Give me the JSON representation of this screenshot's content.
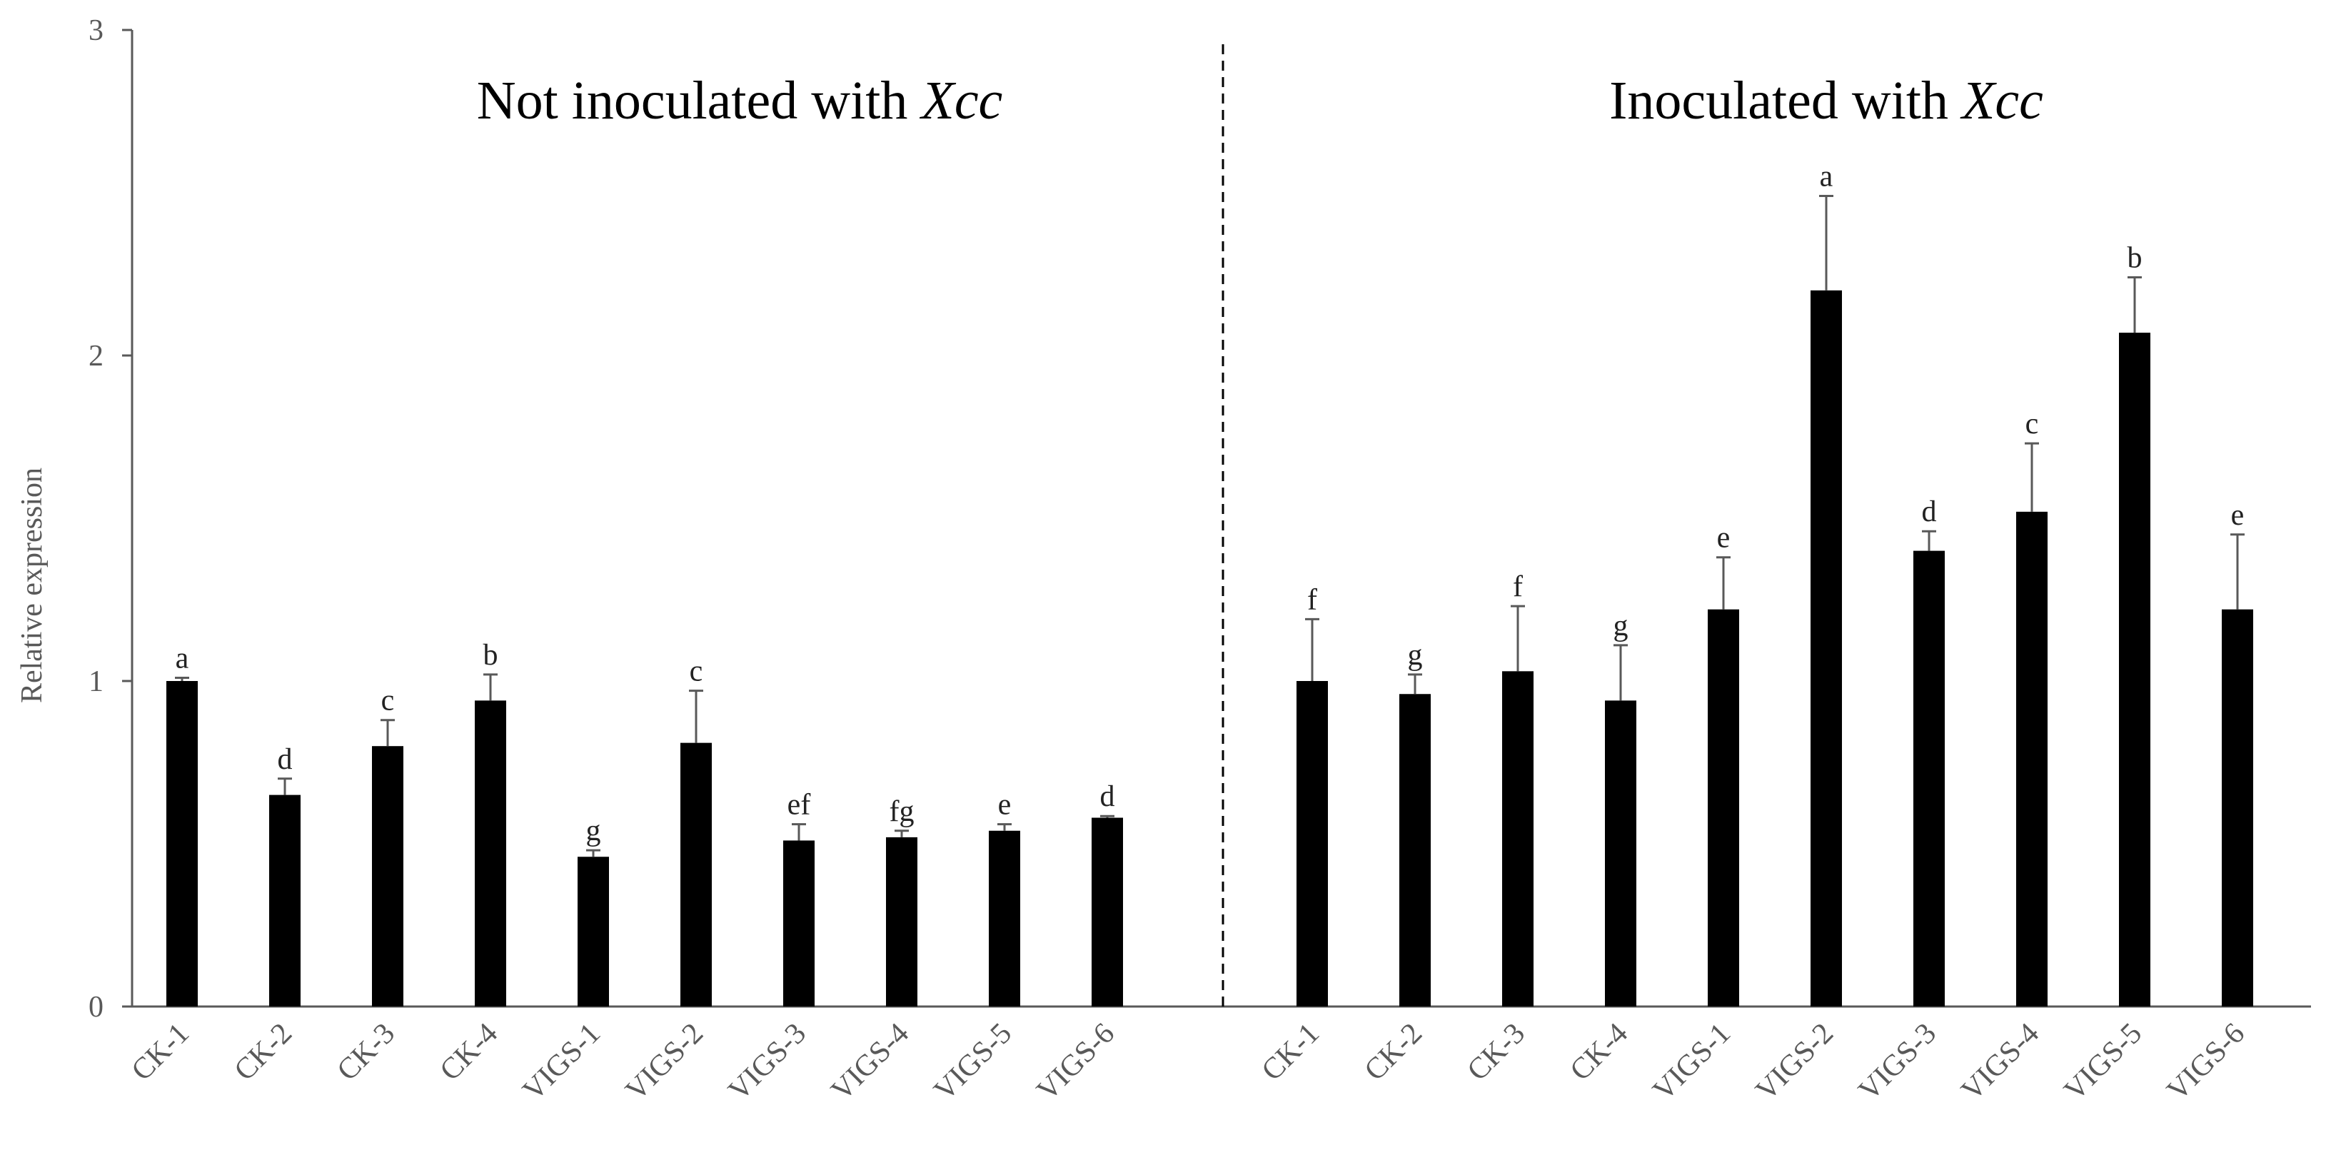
{
  "chart_data": {
    "type": "bar",
    "ylabel": "Relative expression",
    "xlabel": "",
    "ylim": [
      0,
      3
    ],
    "yticks": [
      "0",
      "1",
      "2",
      "3"
    ],
    "groups": [
      {
        "title_plain": "Not inoculated with ",
        "title_italic": "Xcc",
        "categories": [
          "CK-1",
          "CK-2",
          "CK-3",
          "CK-4",
          "VIGS-1",
          "VIGS-2",
          "VIGS-3",
          "VIGS-4",
          "VIGS-5",
          "VIGS-6"
        ],
        "values": [
          1.0,
          0.65,
          0.8,
          0.94,
          0.46,
          0.81,
          0.51,
          0.52,
          0.54,
          0.58
        ],
        "errors": [
          0.01,
          0.05,
          0.08,
          0.08,
          0.02,
          0.16,
          0.05,
          0.02,
          0.02,
          0.005
        ],
        "letters": [
          "a",
          "d",
          "c",
          "b",
          "g",
          "c",
          "ef",
          "fg",
          "e",
          "d"
        ]
      },
      {
        "title_plain": "Inoculated with ",
        "title_italic": "Xcc",
        "categories": [
          "CK-1",
          "CK-2",
          "CK-3",
          "CK-4",
          "VIGS-1",
          "VIGS-2",
          "VIGS-3",
          "VIGS-4",
          "VIGS-5",
          "VIGS-6"
        ],
        "values": [
          1.0,
          0.96,
          1.03,
          0.94,
          1.22,
          2.2,
          1.4,
          1.52,
          2.07,
          1.22
        ],
        "errors": [
          0.19,
          0.06,
          0.2,
          0.17,
          0.16,
          0.29,
          0.06,
          0.21,
          0.17,
          0.23
        ],
        "letters": [
          "f",
          "g",
          "f",
          "g",
          "e",
          "a",
          "d",
          "c",
          "b",
          "e"
        ]
      }
    ],
    "bar_color": "#000000",
    "axis_color": "#595959"
  }
}
